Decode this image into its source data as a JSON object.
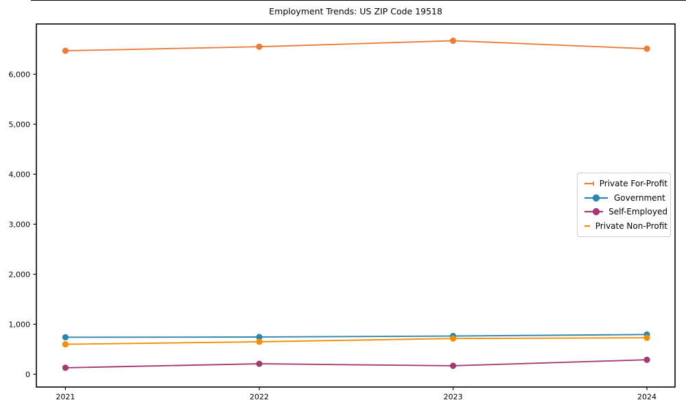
{
  "figure": {
    "background": "#ffffff",
    "frame_color": "#000000"
  },
  "chart_data": {
    "type": "line",
    "title": "Employment Trends: US ZIP Code 19518",
    "x": [
      2021,
      2022,
      2023,
      2024
    ],
    "xtick_labels": [
      "2021",
      "2022",
      "2023",
      "2024"
    ],
    "series": [
      {
        "name": "Private For-Profit",
        "color": "#E87E3C",
        "values": [
          6470,
          6550,
          6670,
          6510
        ]
      },
      {
        "name": "Government",
        "color": "#2E86AB",
        "values": [
          740,
          745,
          765,
          795
        ]
      },
      {
        "name": "Self-Employed",
        "color": "#A23B72",
        "values": [
          130,
          210,
          170,
          290
        ]
      },
      {
        "name": "Private Non-Profit",
        "color": "#F18F01",
        "values": [
          600,
          650,
          715,
          730
        ]
      }
    ],
    "xlabel": "",
    "ylabel": "",
    "xlim": [
      2020.85,
      2024.145
    ],
    "ylim": [
      -255,
      7005
    ],
    "yticks": [
      0,
      1000,
      2000,
      3000,
      4000,
      5000,
      6000
    ],
    "ytick_labels": [
      "0",
      "1,000",
      "2,000",
      "3,000",
      "4,000",
      "5,000",
      "6,000"
    ],
    "grid": false,
    "legend": {
      "position": "center right",
      "entries": [
        "Private For-Profit",
        "Government",
        "Self-Employed",
        "Private Non-Profit"
      ]
    }
  }
}
